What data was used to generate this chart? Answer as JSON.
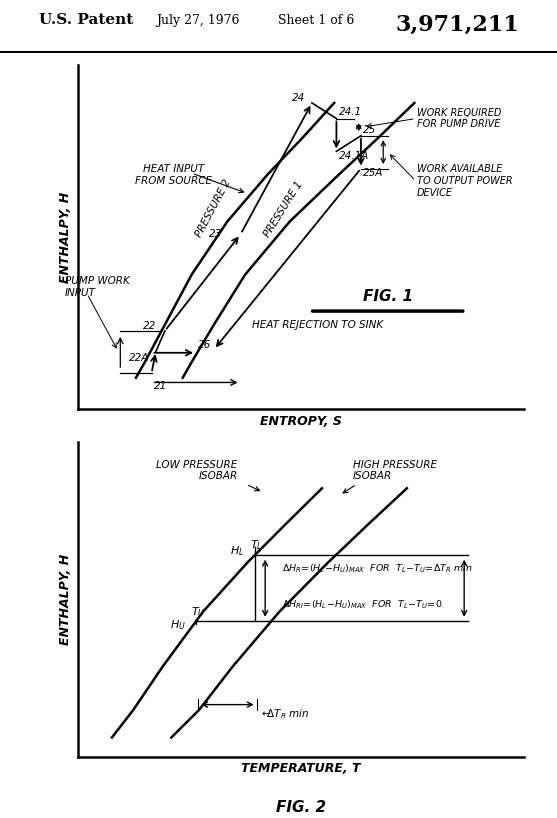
{
  "header_left": "U.S. Patent",
  "header_date": "July 27, 1976",
  "header_sheet": "Sheet 1 of 6",
  "header_number": "3,971,211",
  "fig1_title": "FIG. 1",
  "fig1_xlabel": "ENTROPY, S",
  "fig1_ylabel": "ENTHALPY, H",
  "fig1_pressure1": "PRESSURE 1",
  "fig1_pressure2": "PRESSURE 2",
  "fig1_heat_input": "HEAT INPUT\nFROM SOURCE",
  "fig1_pump_work": "PUMP WORK\nINPUT",
  "fig1_heat_reject": "HEAT REJECTION TO SINK",
  "fig1_work_pump": "WORK REQUIRED\nFOR PUMP DRIVE",
  "fig1_work_avail": "WORK AVAILABLE\nTO OUTPUT POWER\nDEVICE",
  "fig2_title": "FIG. 2",
  "fig2_xlabel": "TEMPERATURE, T",
  "fig2_ylabel": "ENTHALPY, H",
  "fig2_isobar_low": "LOW PRESSURE\nISOBAR",
  "fig2_isobar_high": "HIGH PRESSURE\nISOBAR",
  "fig2_ann1": "DH_R=(H_L-H_U)MAX FOR T_L-T_U = DT_R min",
  "fig2_ann2": "DH_RI=(H_L-H_U)MAX FOR T_L-T_U=0",
  "fig2_ann3": "DT_R min",
  "bg_color": "#ffffff"
}
